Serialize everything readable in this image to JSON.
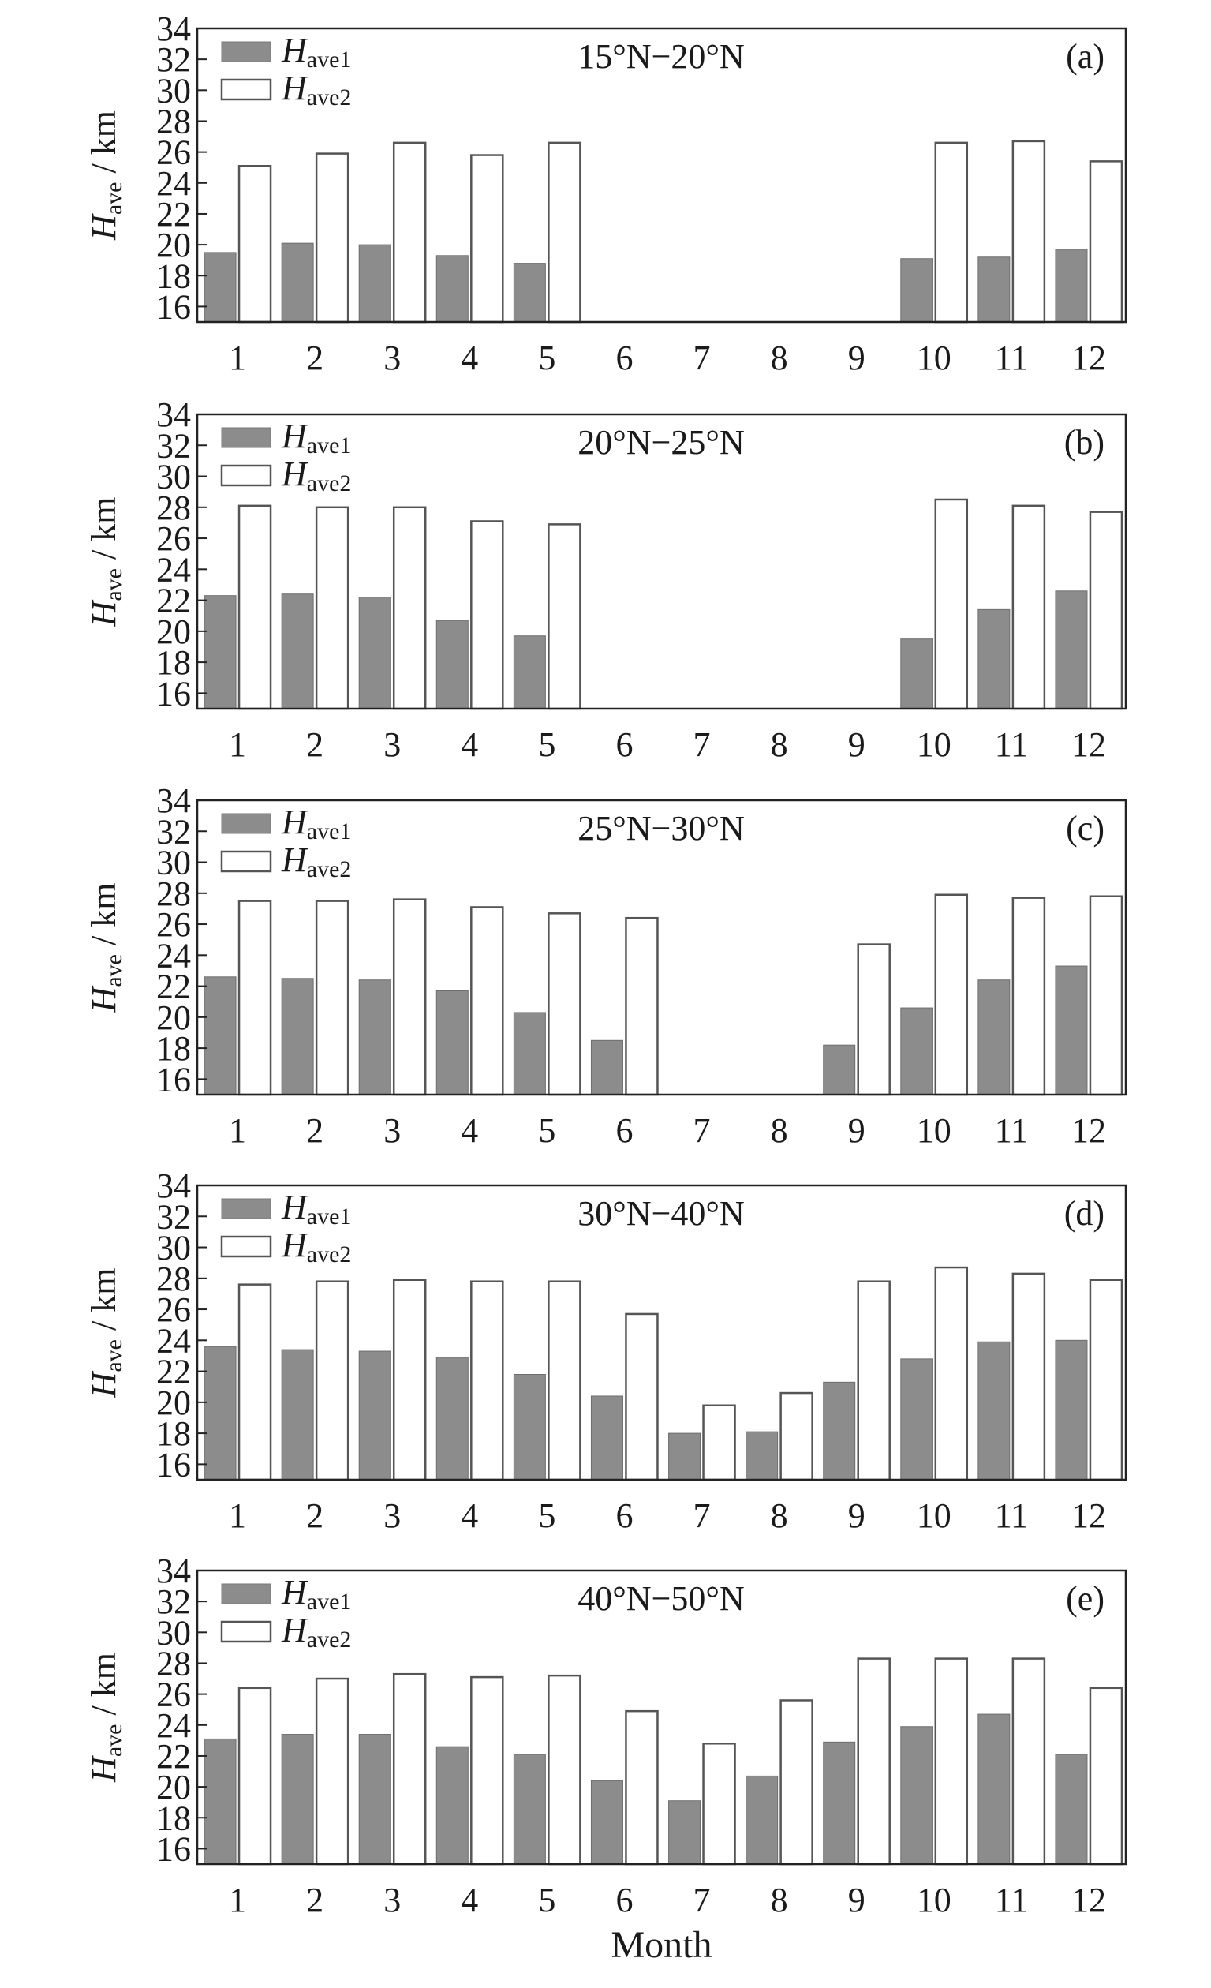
{
  "chart_data": [
    {
      "type": "bar",
      "title": "15°N−20°N",
      "tag": "(a)",
      "xlabel": "",
      "ylabel": {
        "main": "H",
        "sub": "ave",
        "suffix": " / km"
      },
      "ylim": [
        15,
        34
      ],
      "yticks": [
        16,
        18,
        20,
        22,
        24,
        26,
        28,
        30,
        32,
        34
      ],
      "categories": [
        "1",
        "2",
        "3",
        "4",
        "5",
        "6",
        "7",
        "8",
        "9",
        "10",
        "11",
        "12"
      ],
      "series": [
        {
          "name": "Have1",
          "label_main": "H",
          "label_sub": "ave1",
          "color": "#8c8c8c",
          "values": [
            19.5,
            20.1,
            20.0,
            19.3,
            18.8,
            null,
            null,
            null,
            null,
            19.1,
            19.2,
            19.7
          ]
        },
        {
          "name": "Have2",
          "label_main": "H",
          "label_sub": "ave2",
          "color": "#ffffff",
          "values": [
            25.1,
            25.9,
            26.6,
            25.8,
            26.6,
            null,
            null,
            null,
            null,
            26.6,
            26.7,
            25.4
          ]
        }
      ],
      "legend": "top-left",
      "grid": false
    },
    {
      "type": "bar",
      "title": "20°N−25°N",
      "tag": "(b)",
      "xlabel": "",
      "ylabel": {
        "main": "H",
        "sub": "ave",
        "suffix": " / km"
      },
      "ylim": [
        15,
        34
      ],
      "yticks": [
        16,
        18,
        20,
        22,
        24,
        26,
        28,
        30,
        32,
        34
      ],
      "categories": [
        "1",
        "2",
        "3",
        "4",
        "5",
        "6",
        "7",
        "8",
        "9",
        "10",
        "11",
        "12"
      ],
      "series": [
        {
          "name": "Have1",
          "label_main": "H",
          "label_sub": "ave1",
          "color": "#8c8c8c",
          "values": [
            22.3,
            22.4,
            22.2,
            20.7,
            19.7,
            null,
            null,
            null,
            null,
            19.5,
            21.4,
            22.6
          ]
        },
        {
          "name": "Have2",
          "label_main": "H",
          "label_sub": "ave2",
          "color": "#ffffff",
          "values": [
            28.1,
            28.0,
            28.0,
            27.1,
            26.9,
            null,
            null,
            null,
            null,
            28.5,
            28.1,
            27.7
          ]
        }
      ],
      "legend": "top-left",
      "grid": false
    },
    {
      "type": "bar",
      "title": "25°N−30°N",
      "tag": "(c)",
      "xlabel": "",
      "ylabel": {
        "main": "H",
        "sub": "ave",
        "suffix": " / km"
      },
      "ylim": [
        15,
        34
      ],
      "yticks": [
        16,
        18,
        20,
        22,
        24,
        26,
        28,
        30,
        32,
        34
      ],
      "categories": [
        "1",
        "2",
        "3",
        "4",
        "5",
        "6",
        "7",
        "8",
        "9",
        "10",
        "11",
        "12"
      ],
      "series": [
        {
          "name": "Have1",
          "label_main": "H",
          "label_sub": "ave1",
          "color": "#8c8c8c",
          "values": [
            22.6,
            22.5,
            22.4,
            21.7,
            20.3,
            18.5,
            null,
            null,
            18.2,
            20.6,
            22.4,
            23.3
          ]
        },
        {
          "name": "Have2",
          "label_main": "H",
          "label_sub": "ave2",
          "color": "#ffffff",
          "values": [
            27.5,
            27.5,
            27.6,
            27.1,
            26.7,
            26.4,
            null,
            null,
            24.7,
            27.9,
            27.7,
            27.8
          ]
        }
      ],
      "legend": "top-left",
      "grid": false
    },
    {
      "type": "bar",
      "title": "30°N−40°N",
      "tag": "(d)",
      "xlabel": "",
      "ylabel": {
        "main": "H",
        "sub": "ave",
        "suffix": " / km"
      },
      "ylim": [
        15,
        34
      ],
      "yticks": [
        16,
        18,
        20,
        22,
        24,
        26,
        28,
        30,
        32,
        34
      ],
      "categories": [
        "1",
        "2",
        "3",
        "4",
        "5",
        "6",
        "7",
        "8",
        "9",
        "10",
        "11",
        "12"
      ],
      "series": [
        {
          "name": "Have1",
          "label_main": "H",
          "label_sub": "ave1",
          "color": "#8c8c8c",
          "values": [
            23.6,
            23.4,
            23.3,
            22.9,
            21.8,
            20.4,
            18.0,
            18.1,
            21.3,
            22.8,
            23.9,
            24.0
          ]
        },
        {
          "name": "Have2",
          "label_main": "H",
          "label_sub": "ave2",
          "color": "#ffffff",
          "values": [
            27.6,
            27.8,
            27.9,
            27.8,
            27.8,
            25.7,
            19.8,
            20.6,
            27.8,
            28.7,
            28.3,
            27.9
          ]
        }
      ],
      "legend": "top-left",
      "grid": false
    },
    {
      "type": "bar",
      "title": "40°N−50°N",
      "tag": "(e)",
      "xlabel": "Month",
      "ylabel": {
        "main": "H",
        "sub": "ave",
        "suffix": " / km"
      },
      "ylim": [
        15,
        34
      ],
      "yticks": [
        16,
        18,
        20,
        22,
        24,
        26,
        28,
        30,
        32,
        34
      ],
      "categories": [
        "1",
        "2",
        "3",
        "4",
        "5",
        "6",
        "7",
        "8",
        "9",
        "10",
        "11",
        "12"
      ],
      "series": [
        {
          "name": "Have1",
          "label_main": "H",
          "label_sub": "ave1",
          "color": "#8c8c8c",
          "values": [
            23.1,
            23.4,
            23.4,
            22.6,
            22.1,
            20.4,
            19.1,
            20.7,
            22.9,
            23.9,
            24.7,
            22.1
          ]
        },
        {
          "name": "Have2",
          "label_main": "H",
          "label_sub": "ave2",
          "color": "#ffffff",
          "values": [
            26.4,
            27.0,
            27.3,
            27.1,
            27.2,
            24.9,
            22.8,
            25.6,
            28.3,
            28.3,
            28.3,
            26.4
          ]
        }
      ],
      "legend": "top-left",
      "grid": false
    }
  ]
}
